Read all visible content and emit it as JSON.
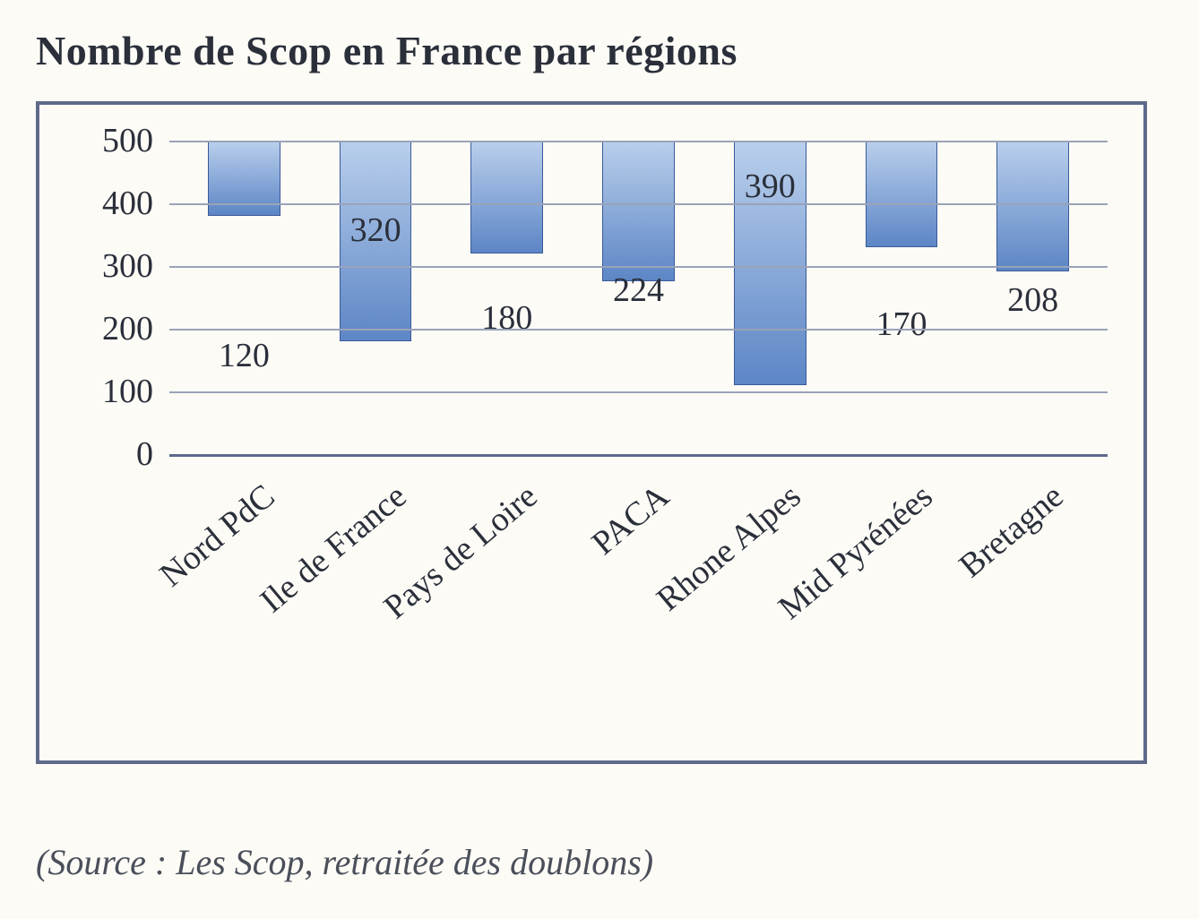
{
  "title": "Nombre de Scop en France par régions",
  "title_fontsize": 46,
  "title_color": "#2a2f3a",
  "source_text": "(Source : Les Scop, retraitée des doublons)",
  "source_fontsize": 40,
  "source_color": "#4a4f5a",
  "chart": {
    "type": "bar",
    "categories": [
      "Nord PdC",
      "Ile de France",
      "Pays de Loire",
      "PACA",
      "Rhone Alpes",
      "Mid Pyrénées",
      "Bretagne"
    ],
    "values": [
      120,
      320,
      180,
      224,
      390,
      170,
      208
    ],
    "value_label_fontsize": 38,
    "value_label_color": "#2a2f3a",
    "bar_gradient_top": "#b9cfec",
    "bar_gradient_bottom": "#5d86c6",
    "bar_border_color": "#3a5a9a",
    "bar_width_ratio": 0.55,
    "ylim": [
      0,
      500
    ],
    "ytick_step": 100,
    "ytick_labels": [
      "0",
      "100",
      "200",
      "300",
      "400",
      "500"
    ],
    "ytick_fontsize": 38,
    "ytick_color": "#2a2f3a",
    "xlabel_fontsize": 38,
    "xlabel_color": "#2a2f3a",
    "xlabel_rotation_deg": -40,
    "grid_color": "#9aa3b8",
    "baseline_color": "#5f6a8a",
    "background_color": "#fdfbf6",
    "frame_border_color": "#5f6a8a"
  }
}
